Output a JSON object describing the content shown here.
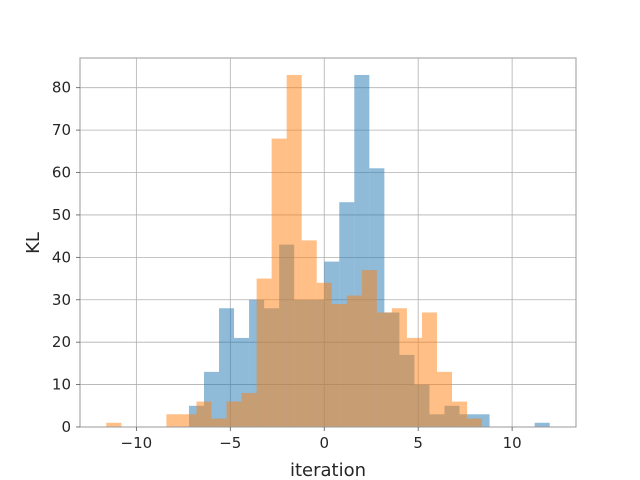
{
  "chart_data": {
    "type": "bar",
    "title": "",
    "xlabel": "iteration",
    "ylabel": "KL",
    "xlim": [
      -13,
      13.4
    ],
    "ylim": [
      0,
      87
    ],
    "grid": true,
    "xticks": [
      -10,
      -5,
      0,
      5,
      10
    ],
    "xtick_labels": [
      "−10",
      "−5",
      "0",
      "5",
      "10"
    ],
    "yticks": [
      0,
      10,
      20,
      30,
      40,
      50,
      60,
      70,
      80
    ],
    "bin_width": 0.8,
    "series": [
      {
        "color": "#1f77b4",
        "opacity": 0.5,
        "bins": [
          [
            -7.2,
            5
          ],
          [
            -6.4,
            13
          ],
          [
            -5.6,
            28
          ],
          [
            -4.8,
            21
          ],
          [
            -4.0,
            30
          ],
          [
            -3.2,
            28
          ],
          [
            -2.4,
            43
          ],
          [
            -1.6,
            30
          ],
          [
            -0.8,
            30
          ],
          [
            0.0,
            39
          ],
          [
            0.8,
            53
          ],
          [
            1.6,
            83
          ],
          [
            2.4,
            61
          ],
          [
            3.2,
            27
          ],
          [
            4.0,
            17
          ],
          [
            4.8,
            10
          ],
          [
            5.6,
            3
          ],
          [
            6.4,
            5
          ],
          [
            7.2,
            3
          ],
          [
            8.0,
            3
          ],
          [
            11.2,
            1
          ]
        ]
      },
      {
        "color": "#ff7f0e",
        "opacity": 0.5,
        "bins": [
          [
            -11.6,
            1
          ],
          [
            -8.4,
            3
          ],
          [
            -7.6,
            3
          ],
          [
            -6.8,
            6
          ],
          [
            -6.0,
            2
          ],
          [
            -5.2,
            6
          ],
          [
            -4.4,
            8
          ],
          [
            -3.6,
            35
          ],
          [
            -2.8,
            68
          ],
          [
            -2.0,
            83
          ],
          [
            -1.2,
            44
          ],
          [
            -0.4,
            34
          ],
          [
            0.4,
            29
          ],
          [
            1.2,
            31
          ],
          [
            2.0,
            37
          ],
          [
            2.8,
            27
          ],
          [
            3.6,
            28
          ],
          [
            4.4,
            21
          ],
          [
            5.2,
            27
          ],
          [
            6.0,
            13
          ],
          [
            6.8,
            6
          ],
          [
            7.6,
            2
          ]
        ]
      }
    ]
  }
}
